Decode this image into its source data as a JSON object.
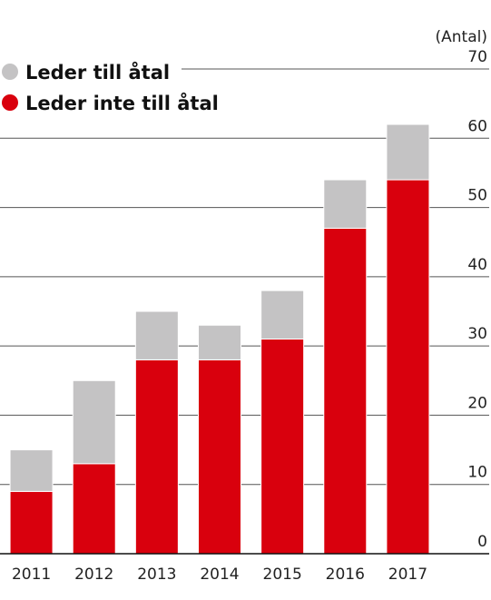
{
  "chart_data": {
    "type": "bar",
    "stacked": true,
    "title": "",
    "xlabel": "",
    "ylabel": "",
    "unit_label": "(Antal)",
    "categories": [
      "2011",
      "2012",
      "2013",
      "2014",
      "2015",
      "2016",
      "2017"
    ],
    "series": [
      {
        "name": "Leder inte till åtal",
        "color": "#d9000d",
        "values": [
          9,
          13,
          28,
          28,
          31,
          47,
          54
        ]
      },
      {
        "name": "Leder till åtal",
        "color": "#c4c3c4",
        "values": [
          6,
          12,
          7,
          5,
          7,
          7,
          8
        ]
      }
    ],
    "ylim": [
      0,
      70
    ],
    "yticks": [
      0,
      10,
      20,
      30,
      40,
      50,
      60,
      70
    ],
    "grid": true,
    "legend_position": "top-left"
  }
}
